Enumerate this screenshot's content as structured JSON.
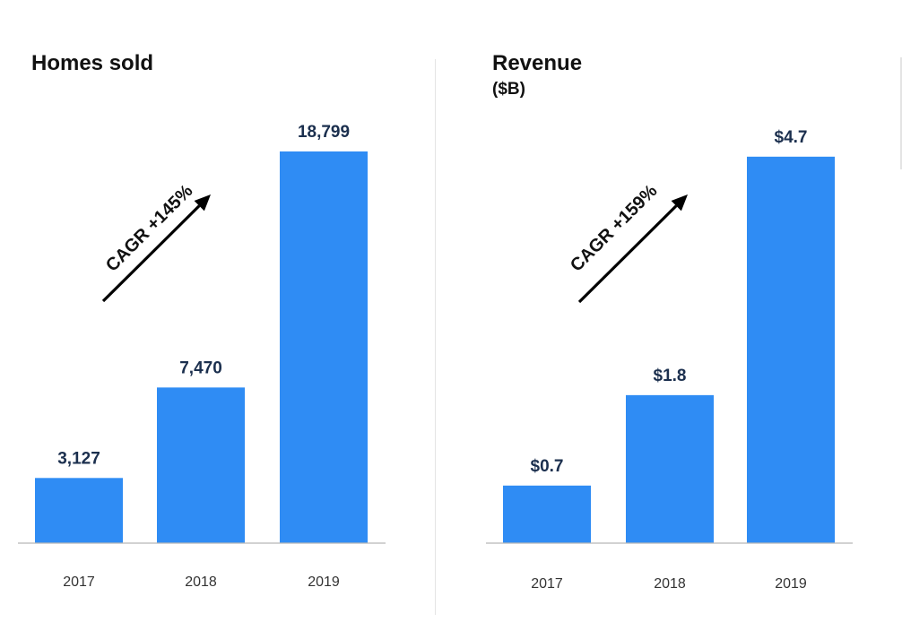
{
  "chart_data": [
    {
      "type": "bar",
      "title": "Homes sold",
      "subtitle": "",
      "categories": [
        "2017",
        "2018",
        "2019"
      ],
      "values": [
        3127,
        7470,
        18799
      ],
      "value_labels": [
        "3,127",
        "7,470",
        "18,799"
      ],
      "ylim": [
        0,
        18799
      ],
      "annotation": "CAGR +145%",
      "grid": false,
      "legend": "none",
      "bar_color": "#2f8cf4"
    },
    {
      "type": "bar",
      "title": "Revenue",
      "subtitle": "($B)",
      "categories": [
        "2017",
        "2018",
        "2019"
      ],
      "values": [
        0.7,
        1.8,
        4.7
      ],
      "value_labels": [
        "$0.7",
        "$1.8",
        "$4.7"
      ],
      "ylim": [
        0,
        5.57
      ],
      "annotation": "CAGR +159%",
      "grid": false,
      "legend": "none",
      "bar_color": "#2f8cf4"
    }
  ]
}
